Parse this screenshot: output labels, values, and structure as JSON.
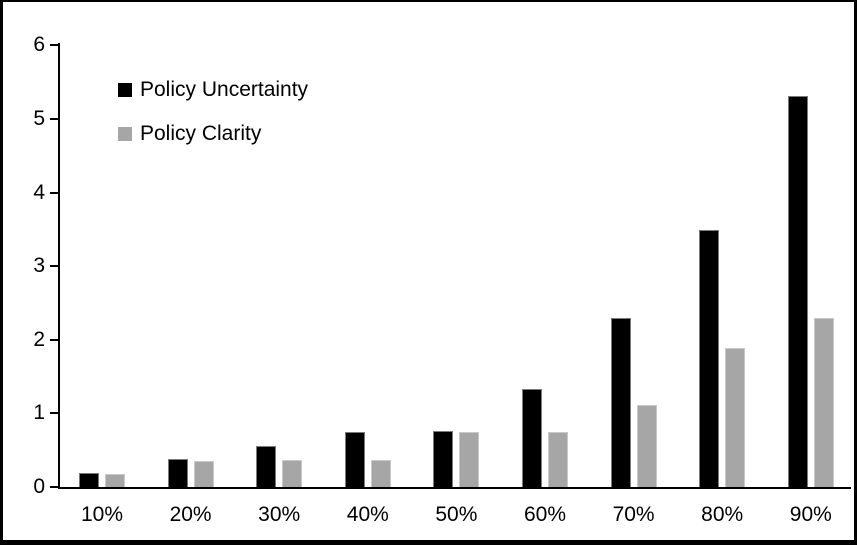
{
  "chart_data": {
    "type": "bar",
    "title": "",
    "xlabel": "",
    "ylabel": "",
    "categories": [
      "10%",
      "20%",
      "30%",
      "40%",
      "50%",
      "60%",
      "70%",
      "80%",
      "90%"
    ],
    "series": [
      {
        "name": "Policy Uncertainty",
        "color": "#000000",
        "values": [
          0.19,
          0.38,
          0.56,
          0.75,
          0.76,
          1.33,
          2.3,
          3.49,
          5.31
        ]
      },
      {
        "name": "Policy Clarity",
        "color": "#a6a6a6",
        "values": [
          0.17,
          0.36,
          0.37,
          0.37,
          0.75,
          0.75,
          1.12,
          1.89,
          2.29
        ]
      }
    ],
    "ylim": [
      0,
      6
    ],
    "yticks": [
      0,
      1,
      2,
      3,
      4,
      5,
      6
    ],
    "grid": false,
    "legend_position": "top-left",
    "colors": {
      "axis": "#000000",
      "background": "#ffffff",
      "frame_border": "#000000"
    }
  }
}
